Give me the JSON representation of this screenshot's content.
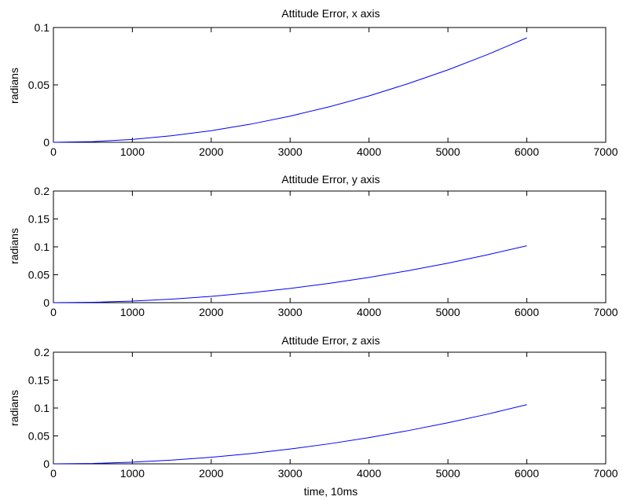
{
  "chart_data": [
    {
      "type": "line",
      "title": "Attitude Error, x axis",
      "xlabel": "",
      "ylabel": "radians",
      "xlim": [
        0,
        7000
      ],
      "ylim": [
        0,
        0.1
      ],
      "xticks": [
        0,
        1000,
        2000,
        3000,
        4000,
        5000,
        6000,
        7000
      ],
      "xtick_labels": [
        "0",
        "1000",
        "2000",
        "3000",
        "4000",
        "5000",
        "6000",
        "7000"
      ],
      "yticks": [
        0,
        0.05,
        0.1
      ],
      "ytick_labels": [
        "0",
        "0.05",
        "0.1"
      ],
      "grid": false,
      "series": [
        {
          "color": "#0000ff",
          "x": [
            0,
            500,
            1000,
            1500,
            2000,
            2500,
            3000,
            3500,
            4000,
            4500,
            5000,
            5500,
            6000
          ],
          "y": [
            0,
            0.0006,
            0.0025,
            0.0057,
            0.0101,
            0.0158,
            0.0228,
            0.031,
            0.0404,
            0.0512,
            0.0631,
            0.0764,
            0.091
          ]
        }
      ]
    },
    {
      "type": "line",
      "title": "Attitude Error, y axis",
      "xlabel": "",
      "ylabel": "radians",
      "xlim": [
        0,
        7000
      ],
      "ylim": [
        0,
        0.2
      ],
      "xticks": [
        0,
        1000,
        2000,
        3000,
        4000,
        5000,
        6000,
        7000
      ],
      "xtick_labels": [
        "0",
        "1000",
        "2000",
        "3000",
        "4000",
        "5000",
        "6000",
        "7000"
      ],
      "yticks": [
        0,
        0.05,
        0.1,
        0.15,
        0.2
      ],
      "ytick_labels": [
        "0",
        "0.05",
        "0.1",
        "0.15",
        "0.2"
      ],
      "grid": false,
      "series": [
        {
          "color": "#0000ff",
          "x": [
            0,
            500,
            1000,
            1500,
            2000,
            2500,
            3000,
            3500,
            4000,
            4500,
            5000,
            5500,
            6000
          ],
          "y": [
            0,
            0.0007,
            0.0028,
            0.0064,
            0.0113,
            0.0177,
            0.0255,
            0.0347,
            0.0453,
            0.0574,
            0.0708,
            0.0857,
            0.102
          ]
        }
      ]
    },
    {
      "type": "line",
      "title": "Attitude Error, z axis",
      "xlabel": "time, 10ms",
      "ylabel": "radians",
      "xlim": [
        0,
        7000
      ],
      "ylim": [
        0,
        0.2
      ],
      "xticks": [
        0,
        1000,
        2000,
        3000,
        4000,
        5000,
        6000,
        7000
      ],
      "xtick_labels": [
        "0",
        "1000",
        "2000",
        "3000",
        "4000",
        "5000",
        "6000",
        "7000"
      ],
      "yticks": [
        0,
        0.05,
        0.1,
        0.15,
        0.2
      ],
      "ytick_labels": [
        "0",
        "0.05",
        "0.1",
        "0.15",
        "0.2"
      ],
      "grid": false,
      "series": [
        {
          "color": "#0000ff",
          "x": [
            0,
            500,
            1000,
            1500,
            2000,
            2500,
            3000,
            3500,
            4000,
            4500,
            5000,
            5500,
            6000
          ],
          "y": [
            0,
            0.0007,
            0.003,
            0.0066,
            0.0118,
            0.0184,
            0.0265,
            0.036,
            0.047,
            0.0596,
            0.0736,
            0.089,
            0.106
          ]
        }
      ]
    }
  ]
}
